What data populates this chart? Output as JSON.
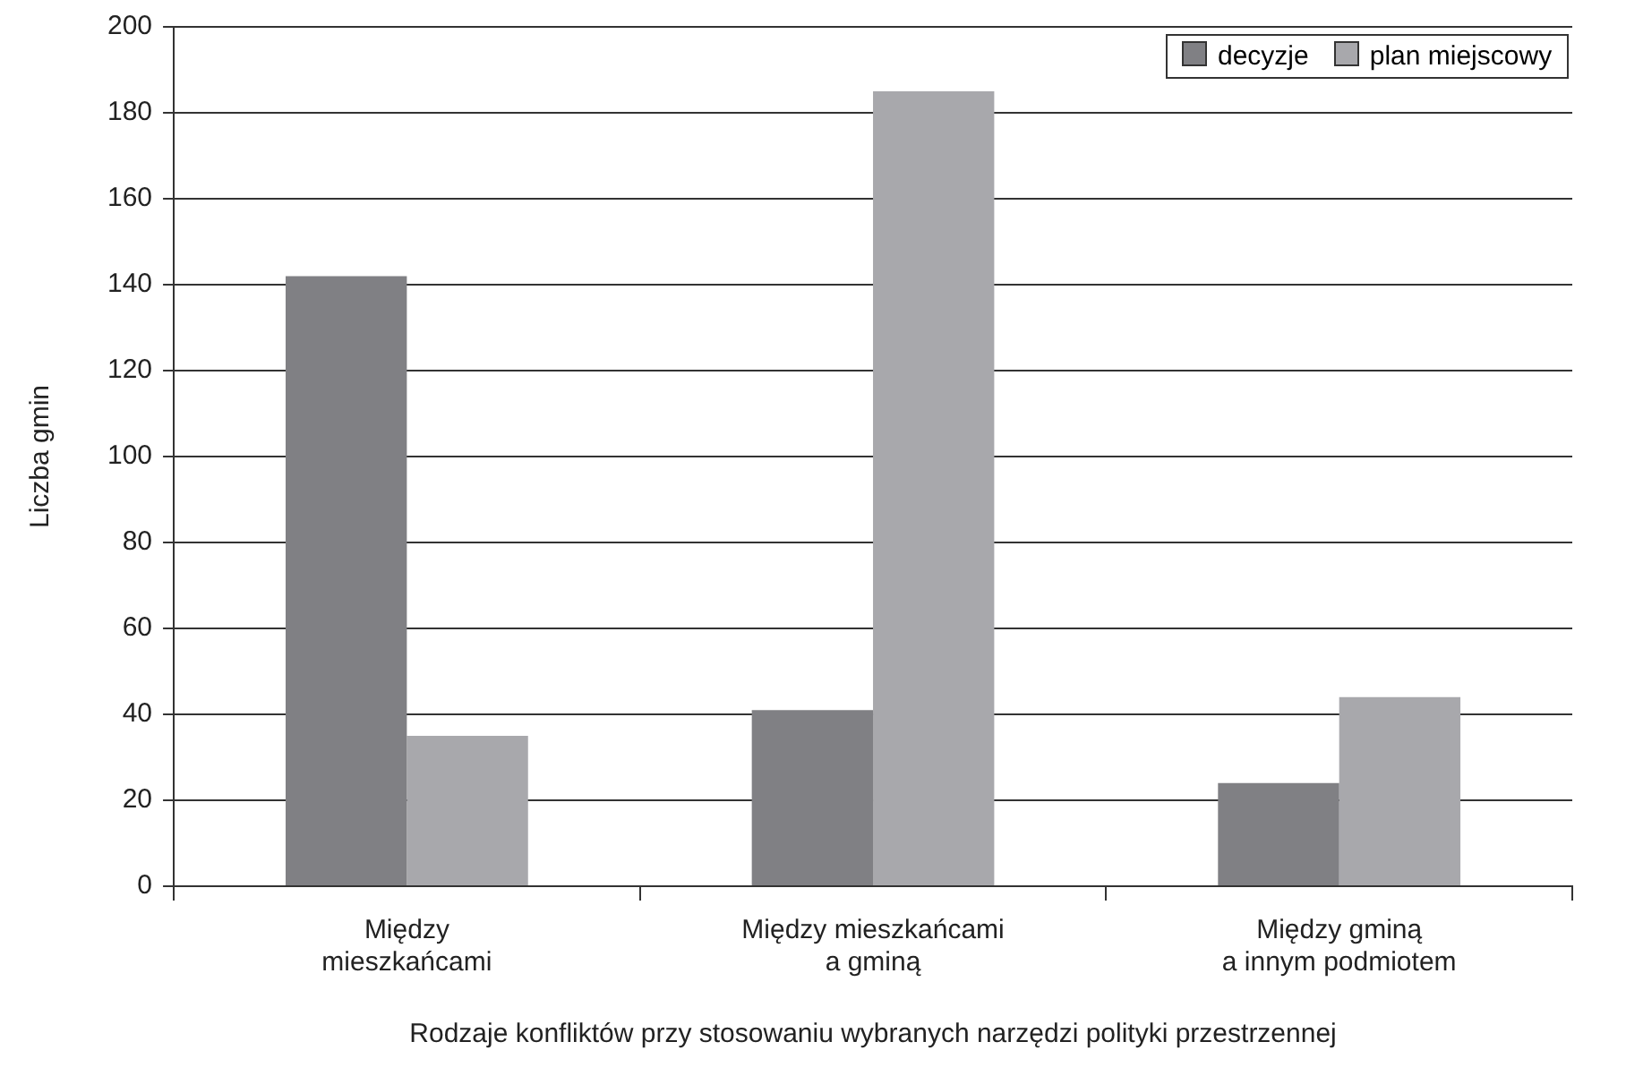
{
  "chart_data": {
    "type": "bar",
    "xlabel": "Rodzaje konfliktów przy stosowaniu wybranych narzędzi polityki przestrzennej",
    "ylabel": "Liczba gmin",
    "categories": [
      "Między\nmieszkańcami",
      "Między mieszkańcami\na gminą",
      "Między gminą\na innym podmiotem"
    ],
    "series": [
      {
        "name": "decyzje",
        "color": "#808084",
        "values": [
          142,
          41,
          24
        ]
      },
      {
        "name": "plan miejscowy",
        "color": "#a8a8ac",
        "values": [
          35,
          185,
          44
        ]
      }
    ],
    "ylim": [
      0,
      200
    ],
    "yticks": [
      0,
      20,
      40,
      60,
      80,
      100,
      120,
      140,
      160,
      180,
      200
    ],
    "grid": "y",
    "legend": "top right"
  }
}
